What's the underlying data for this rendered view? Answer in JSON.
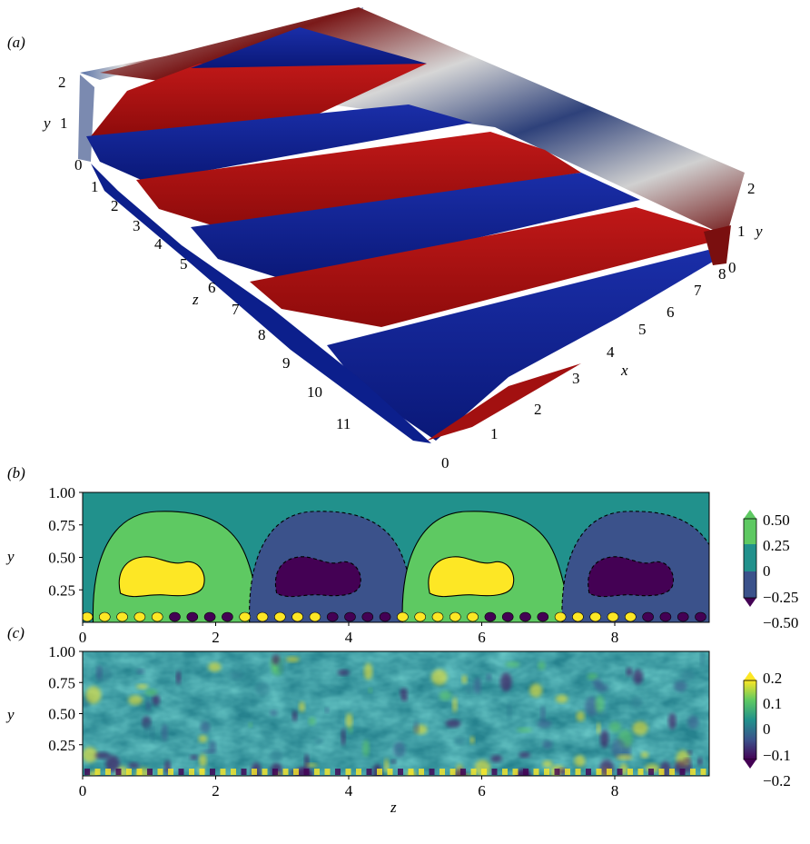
{
  "panels": {
    "a": {
      "label": "(a)"
    },
    "b": {
      "label": "(b)"
    },
    "c": {
      "label": "(c)"
    }
  },
  "chart_data": [
    {
      "type": "other",
      "panel": "a",
      "xlabel": "x",
      "ylabel": "y",
      "zlabel": "z",
      "x_ticks": [
        "0",
        "1",
        "2",
        "3",
        "4",
        "5",
        "6",
        "7",
        "8"
      ],
      "y_ticks": [
        "0",
        "1",
        "2"
      ],
      "y_ticks_right": [
        "0",
        "1",
        "2"
      ],
      "z_ticks": [
        "1",
        "2",
        "3",
        "4",
        "5",
        "6",
        "7",
        "8",
        "9",
        "10",
        "11"
      ],
      "colors": {
        "positive": "#a40f0f",
        "negative": "#0c1f8c"
      }
    },
    {
      "type": "heatmap",
      "panel": "b",
      "xlabel": "",
      "ylabel": "y",
      "xlim": [
        0,
        9.42
      ],
      "ylim": [
        0,
        1.0
      ],
      "x_ticks": [
        "0",
        "2",
        "4",
        "6",
        "8"
      ],
      "y_ticks": [
        "0.25",
        "0.50",
        "0.75",
        "1.00"
      ],
      "colorbar": {
        "ticks": [
          "0.50",
          "0.25",
          "0",
          "−0.25",
          "−0.50"
        ],
        "range": [
          -0.5,
          0.5
        ],
        "extend": "both"
      },
      "structures": [
        {
          "sign": "positive",
          "z_center": 1.25,
          "level_max": 0.5
        },
        {
          "sign": "negative",
          "z_center": 3.6,
          "level_max": -0.5
        },
        {
          "sign": "positive",
          "z_center": 5.9,
          "level_max": 0.5
        },
        {
          "sign": "negative",
          "z_center": 8.3,
          "level_max": -0.5
        }
      ],
      "colormap": "viridis"
    },
    {
      "type": "heatmap",
      "panel": "c",
      "xlabel": "z",
      "ylabel": "y",
      "xlim": [
        0,
        9.42
      ],
      "ylim": [
        0,
        1.0
      ],
      "x_ticks": [
        "0",
        "2",
        "4",
        "6",
        "8"
      ],
      "y_ticks": [
        "0.25",
        "0.50",
        "0.75",
        "1.00"
      ],
      "colorbar": {
        "ticks": [
          "0.2",
          "0.1",
          "0",
          "−0.1",
          "−0.2"
        ],
        "range": [
          -0.2,
          0.2
        ],
        "extend": "both"
      },
      "colormap": "viridis"
    }
  ]
}
